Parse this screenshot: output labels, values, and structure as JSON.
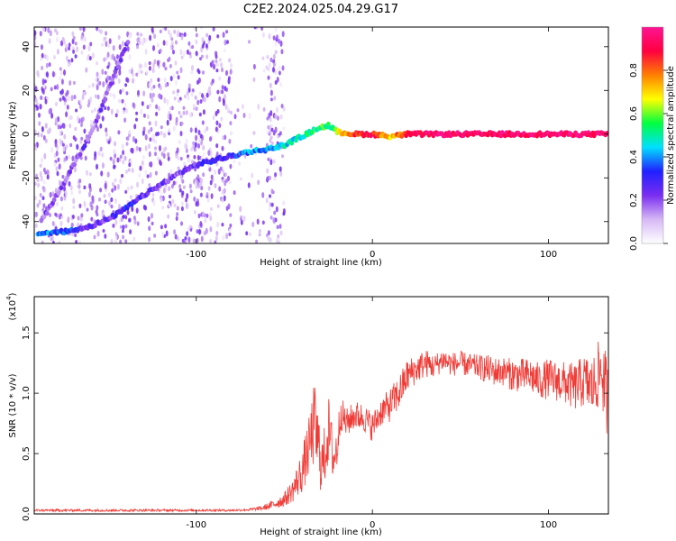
{
  "figure_title": "C2E2.2024.025.04.29.G17",
  "chart_data": [
    {
      "type": "heatmap",
      "xlabel": "Height of straight line (km)",
      "ylabel": "Frequency (Hz)",
      "xlim": [
        -192,
        134
      ],
      "ylim": [
        -50,
        49
      ],
      "xticks": [
        -100,
        0,
        100
      ],
      "yticks": [
        -40,
        -20,
        0,
        20,
        40
      ],
      "colorbar": {
        "label": "Normalized spectral amplitude",
        "range": [
          0,
          1
        ],
        "ticks": [
          "0.0",
          "0.2",
          "0.4",
          "0.6",
          "0.8"
        ],
        "colormap": [
          "#ffffff",
          "#d6b8f5",
          "#7a2df0",
          "#2020ff",
          "#00e0ff",
          "#00ff40",
          "#ffff00",
          "#ff8000",
          "#ff0040",
          "#ff1493"
        ]
      },
      "noise_region": {
        "x_range": [
          -192,
          -50
        ],
        "y_range": [
          -50,
          49
        ],
        "typical_amplitude": 0.2
      },
      "features": [
        {
          "name": "descending trace",
          "points": [
            [
              -188,
              -40
            ],
            [
              -175,
              -22
            ],
            [
              -160,
              0
            ],
            [
              -150,
              20
            ],
            [
              -138,
              44
            ]
          ],
          "amplitude": 0.2
        },
        {
          "name": "main signal track",
          "points": [
            [
              -190,
              -45.5
            ],
            [
              -180,
              -45
            ],
            [
              -170,
              -44
            ],
            [
              -160,
              -42
            ],
            [
              -150,
              -39
            ],
            [
              -140,
              -34
            ],
            [
              -130,
              -28
            ],
            [
              -120,
              -23
            ],
            [
              -110,
              -18
            ],
            [
              -100,
              -14
            ],
            [
              -90,
              -12
            ],
            [
              -80,
              -10
            ],
            [
              -70,
              -8
            ],
            [
              -60,
              -7
            ],
            [
              -50,
              -5
            ],
            [
              -40,
              -1
            ],
            [
              -30,
              3
            ],
            [
              -25,
              4
            ],
            [
              -20,
              1
            ],
            [
              -10,
              0
            ],
            [
              0,
              0
            ],
            [
              10,
              -1
            ],
            [
              20,
              0
            ],
            [
              50,
              0
            ],
            [
              100,
              0
            ],
            [
              134,
              0
            ]
          ],
          "amplitudes": [
            0.35,
            0.38,
            0.32,
            0.25,
            0.22,
            0.3,
            0.25,
            0.22,
            0.2,
            0.22,
            0.3,
            0.28,
            0.4,
            0.42,
            0.45,
            0.5,
            0.55,
            0.55,
            0.6,
            0.85,
            0.9,
            0.7,
            0.92,
            0.95,
            0.95,
            0.95
          ]
        }
      ]
    },
    {
      "type": "line",
      "xlabel": "Height of straight line (km)",
      "ylabel": "SNR (10 * v/v)",
      "y_scale_label": "(x10",
      "y_scale_exponent": "4",
      "y_scale_suffix": ")",
      "xlim": [
        -192,
        134
      ],
      "ylim": [
        0,
        1.8
      ],
      "xticks": [
        -100,
        0,
        100
      ],
      "yticks": [
        "0.0",
        "0.5",
        "1.0",
        "1.5"
      ],
      "series": [
        {
          "color": "#ef3b36",
          "x": [
            -192,
            -170,
            -150,
            -130,
            -110,
            -90,
            -80,
            -70,
            -62,
            -56,
            -50,
            -45,
            -40,
            -36,
            -33,
            -30,
            -28,
            -25,
            -22,
            -20,
            -18,
            -15,
            -10,
            -5,
            0,
            5,
            10,
            15,
            20,
            25,
            30,
            35,
            40,
            45,
            50,
            55,
            60,
            65,
            70,
            75,
            80,
            85,
            90,
            95,
            100,
            105,
            110,
            115,
            120,
            125,
            130,
            134
          ],
          "y": [
            0.03,
            0.03,
            0.03,
            0.03,
            0.03,
            0.03,
            0.03,
            0.035,
            0.05,
            0.08,
            0.12,
            0.2,
            0.35,
            0.55,
            0.75,
            0.5,
            0.4,
            0.7,
            0.45,
            0.55,
            0.85,
            0.75,
            0.82,
            0.8,
            0.72,
            0.85,
            0.9,
            1.0,
            1.15,
            1.2,
            1.25,
            1.22,
            1.28,
            1.24,
            1.25,
            1.23,
            1.22,
            1.2,
            1.18,
            1.18,
            1.15,
            1.15,
            1.14,
            1.1,
            1.12,
            1.1,
            1.08,
            1.05,
            1.1,
            1.05,
            1.2,
            0.9
          ],
          "noise_amplitude": [
            0.01,
            0.01,
            0.01,
            0.01,
            0.01,
            0.01,
            0.01,
            0.01,
            0.02,
            0.04,
            0.06,
            0.1,
            0.18,
            0.25,
            0.35,
            0.3,
            0.25,
            0.3,
            0.2,
            0.2,
            0.15,
            0.12,
            0.12,
            0.12,
            0.12,
            0.12,
            0.14,
            0.15,
            0.14,
            0.12,
            0.12,
            0.1,
            0.1,
            0.1,
            0.1,
            0.1,
            0.1,
            0.12,
            0.12,
            0.12,
            0.14,
            0.14,
            0.15,
            0.15,
            0.17,
            0.17,
            0.18,
            0.2,
            0.22,
            0.25,
            0.3,
            0.35
          ]
        }
      ]
    }
  ]
}
